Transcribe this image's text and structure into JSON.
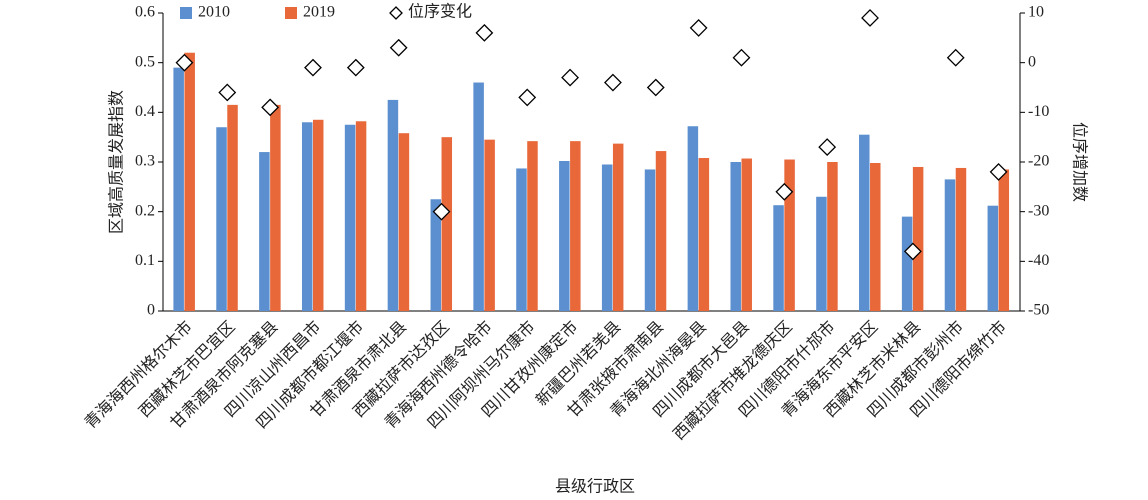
{
  "chart_data": {
    "type": "bar",
    "x_label": "县级行政区",
    "y_label": "区域高质量发展指数",
    "y2_label": "位序增加数",
    "categories": [
      "青海海西州格尔木市",
      "西藏林芝市巴宜区",
      "甘肃酒泉市阿克塞县",
      "四川凉山州西昌市",
      "四川成都市都江堰市",
      "甘肃酒泉市肃北县",
      "西藏拉萨市达孜区",
      "青海海西州德令哈市",
      "四川阿坝州马尔康市",
      "四川甘孜州康定市",
      "新疆巴州若羌县",
      "甘肃张掖市肃南县",
      "青海海北州海晏县",
      "四川成都市大邑县",
      "西藏拉萨市堆龙德庆区",
      "四川德阳市什邡市",
      "青海海东市平安区",
      "西藏林芝市米林县",
      "四川成都市彭州市",
      "四川德阳市绵竹市"
    ],
    "series": [
      {
        "name": "2010",
        "color": "#5b8fcf",
        "values": [
          0.49,
          0.37,
          0.32,
          0.38,
          0.375,
          0.425,
          0.225,
          0.46,
          0.287,
          0.302,
          0.295,
          0.285,
          0.372,
          0.3,
          0.213,
          0.23,
          0.355,
          0.19,
          0.265,
          0.212
        ]
      },
      {
        "name": "2019",
        "color": "#e8683a",
        "values": [
          0.52,
          0.415,
          0.415,
          0.385,
          0.382,
          0.358,
          0.35,
          0.345,
          0.342,
          0.342,
          0.337,
          0.322,
          0.308,
          0.307,
          0.305,
          0.3,
          0.298,
          0.29,
          0.288,
          0.285
        ]
      },
      {
        "name": "位序变化",
        "type": "scatter",
        "axis": "y2",
        "color": "#000000",
        "values": [
          0,
          -6,
          -9,
          -1,
          -1,
          3,
          -30,
          6,
          -7,
          -3,
          -4,
          -5,
          7,
          1,
          -26,
          -17,
          9,
          -38,
          1,
          -22
        ]
      }
    ],
    "ylim": [
      0,
      0.6
    ],
    "yticks": [
      0,
      0.1,
      0.2,
      0.3,
      0.4,
      0.5,
      0.6
    ],
    "y2lim": [
      -50,
      10
    ],
    "y2ticks": [
      -50,
      -40,
      -30,
      -20,
      -10,
      0,
      10
    ]
  }
}
